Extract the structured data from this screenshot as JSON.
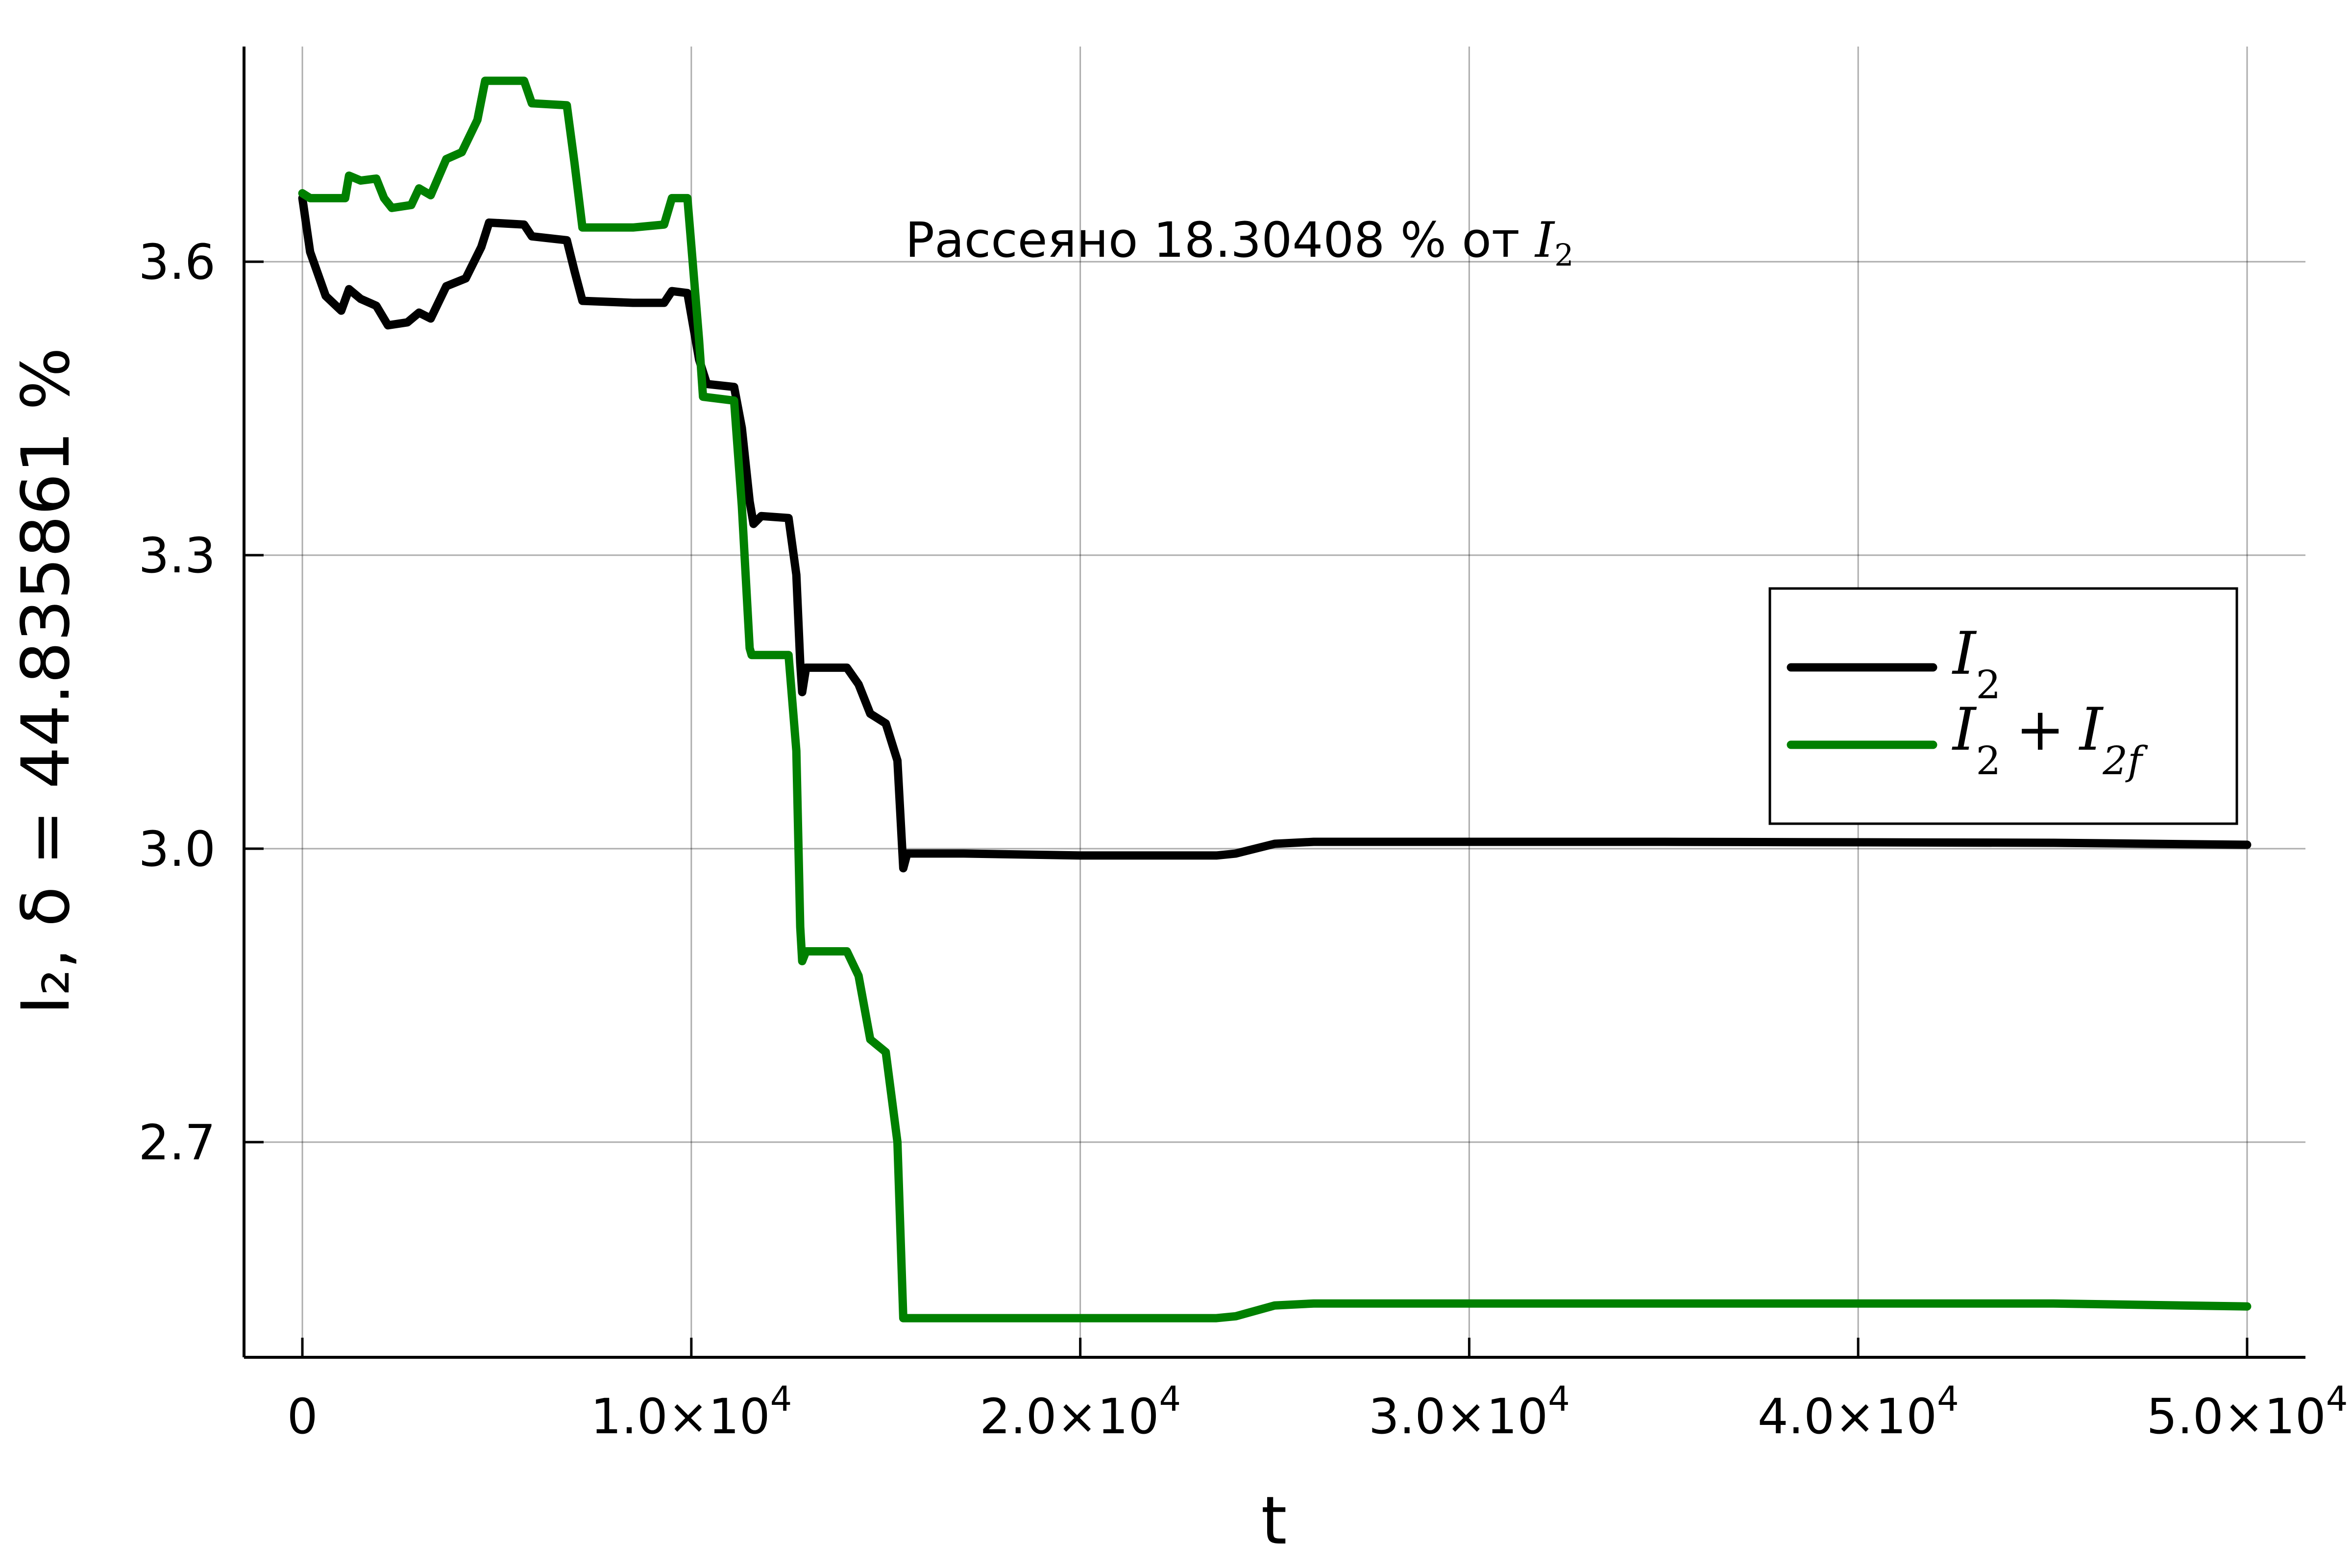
{
  "chart_data": {
    "type": "line",
    "xlabel": "t",
    "ylabel": "I₂, δ = 44.835861 %",
    "annotation": {
      "text": "Рассеяно 18.30408 % от ",
      "symbol": "I",
      "subscript": "2",
      "x": 15500,
      "y": 3.6
    },
    "xlim": [
      -1500,
      51500
    ],
    "ylim": [
      2.48,
      3.82
    ],
    "x_ticks": [
      0,
      10000,
      20000,
      30000,
      40000,
      50000
    ],
    "x_tick_labels": [
      {
        "mantissa": "0",
        "exponent": ""
      },
      {
        "mantissa": "1.0×10",
        "exponent": "4"
      },
      {
        "mantissa": "2.0×10",
        "exponent": "4"
      },
      {
        "mantissa": "3.0×10",
        "exponent": "4"
      },
      {
        "mantissa": "4.0×10",
        "exponent": "4"
      },
      {
        "mantissa": "5.0×10",
        "exponent": "4"
      }
    ],
    "y_ticks": [
      2.7,
      3.0,
      3.3,
      3.6
    ],
    "y_tick_labels": [
      "2.7",
      "3.0",
      "3.3",
      "3.6"
    ],
    "grid": true,
    "legend_position": "right",
    "series": [
      {
        "name": "I_2",
        "legend": {
          "base": "I",
          "sub": "2",
          "extra": ""
        },
        "color": "#000000",
        "points": [
          [
            0,
            3.665
          ],
          [
            200,
            3.61
          ],
          [
            600,
            3.565
          ],
          [
            1000,
            3.55
          ],
          [
            1200,
            3.572
          ],
          [
            1500,
            3.562
          ],
          [
            1900,
            3.555
          ],
          [
            2200,
            3.535
          ],
          [
            2700,
            3.538
          ],
          [
            3000,
            3.548
          ],
          [
            3300,
            3.542
          ],
          [
            3700,
            3.575
          ],
          [
            4200,
            3.583
          ],
          [
            4600,
            3.615
          ],
          [
            4800,
            3.64
          ],
          [
            5700,
            3.638
          ],
          [
            5900,
            3.626
          ],
          [
            6800,
            3.622
          ],
          [
            7000,
            3.59
          ],
          [
            7200,
            3.56
          ],
          [
            8500,
            3.558
          ],
          [
            9300,
            3.558
          ],
          [
            9500,
            3.57
          ],
          [
            9900,
            3.568
          ],
          [
            10200,
            3.5
          ],
          [
            10400,
            3.475
          ],
          [
            11100,
            3.472
          ],
          [
            11300,
            3.43
          ],
          [
            11500,
            3.355
          ],
          [
            11600,
            3.332
          ],
          [
            11800,
            3.34
          ],
          [
            12500,
            3.338
          ],
          [
            12700,
            3.28
          ],
          [
            12800,
            3.19
          ],
          [
            12850,
            3.16
          ],
          [
            12950,
            3.185
          ],
          [
            14000,
            3.185
          ],
          [
            14300,
            3.168
          ],
          [
            14600,
            3.138
          ],
          [
            15000,
            3.128
          ],
          [
            15300,
            3.09
          ],
          [
            15450,
            2.98
          ],
          [
            15550,
            2.995
          ],
          [
            17000,
            2.995
          ],
          [
            20000,
            2.993
          ],
          [
            23500,
            2.993
          ],
          [
            24000,
            2.995
          ],
          [
            25000,
            3.005
          ],
          [
            26000,
            3.007
          ],
          [
            35000,
            3.007
          ],
          [
            45000,
            3.006
          ],
          [
            50000,
            3.004
          ]
        ]
      },
      {
        "name": "I_2 + I_2f",
        "legend": {
          "base": "I",
          "sub": "2",
          "extra": "2f"
        },
        "color": "#008000",
        "points": [
          [
            0,
            3.67
          ],
          [
            200,
            3.665
          ],
          [
            1100,
            3.665
          ],
          [
            1200,
            3.688
          ],
          [
            1500,
            3.683
          ],
          [
            1900,
            3.685
          ],
          [
            2100,
            3.665
          ],
          [
            2300,
            3.655
          ],
          [
            2800,
            3.658
          ],
          [
            3000,
            3.675
          ],
          [
            3300,
            3.668
          ],
          [
            3700,
            3.705
          ],
          [
            4100,
            3.712
          ],
          [
            4500,
            3.745
          ],
          [
            4700,
            3.785
          ],
          [
            5700,
            3.785
          ],
          [
            5900,
            3.762
          ],
          [
            6800,
            3.76
          ],
          [
            7000,
            3.7
          ],
          [
            7200,
            3.635
          ],
          [
            8500,
            3.635
          ],
          [
            9300,
            3.638
          ],
          [
            9500,
            3.665
          ],
          [
            9900,
            3.665
          ],
          [
            10200,
            3.52
          ],
          [
            10300,
            3.462
          ],
          [
            11100,
            3.458
          ],
          [
            11300,
            3.35
          ],
          [
            11500,
            3.205
          ],
          [
            11550,
            3.198
          ],
          [
            12500,
            3.198
          ],
          [
            12700,
            3.1
          ],
          [
            12800,
            2.92
          ],
          [
            12850,
            2.885
          ],
          [
            12950,
            2.895
          ],
          [
            14000,
            2.895
          ],
          [
            14300,
            2.87
          ],
          [
            14600,
            2.805
          ],
          [
            15000,
            2.792
          ],
          [
            15300,
            2.7
          ],
          [
            15450,
            2.52
          ],
          [
            15550,
            2.52
          ],
          [
            17000,
            2.52
          ],
          [
            20000,
            2.52
          ],
          [
            23500,
            2.52
          ],
          [
            24000,
            2.522
          ],
          [
            25000,
            2.533
          ],
          [
            26000,
            2.535
          ],
          [
            35000,
            2.535
          ],
          [
            45000,
            2.535
          ],
          [
            50000,
            2.532
          ]
        ]
      }
    ]
  }
}
